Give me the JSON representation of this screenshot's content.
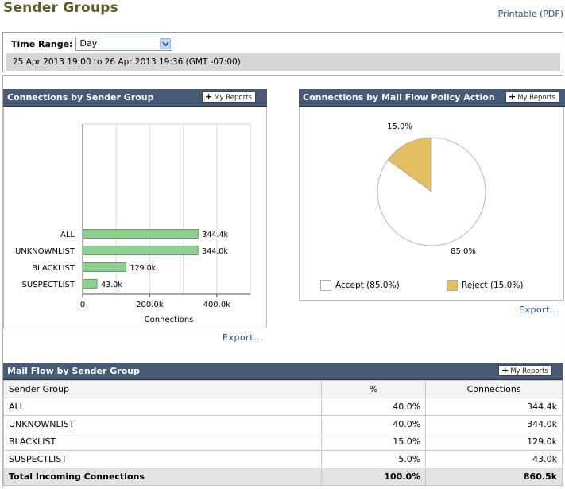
{
  "page": {
    "title": "Sender Groups",
    "printable_link": "Printable (PDF)"
  },
  "time_range": {
    "label": "Time Range:",
    "selected": "Day",
    "range_text": "25 Apr 2013 19:00 to 26 Apr 2013 19:36 (GMT -07:00)"
  },
  "my_reports_label": "My Reports",
  "export_label": "Export...",
  "connections_panel": {
    "title": "Connections by Sender Group"
  },
  "policy_panel": {
    "title": "Connections by Mail Flow Policy Action"
  },
  "chart_data": [
    {
      "type": "bar",
      "orientation": "horizontal",
      "categories": [
        "ALL",
        "UNKNOWNLIST",
        "BLACKLIST",
        "SUSPECTLIST"
      ],
      "values": [
        344.4,
        344.0,
        129.0,
        43.0
      ],
      "value_labels": [
        "344.4k",
        "344.0k",
        "129.0k",
        "43.0k"
      ],
      "xlabel": "Connections",
      "xticks": [
        "0",
        "200.0k",
        "400.0k"
      ],
      "xlim": [
        0,
        500
      ],
      "grid": true,
      "color": "#8fcf8f"
    },
    {
      "type": "pie",
      "labels": [
        "Accept",
        "Reject"
      ],
      "values": [
        85.0,
        15.0
      ],
      "slice_labels": [
        "85.0%",
        "15.0%"
      ],
      "legend": [
        "Accept  (85.0%)",
        "Reject  (15.0%)"
      ],
      "colors": [
        "#ffffff",
        "#e3be61"
      ],
      "legend_position": "bottom"
    }
  ],
  "mail_flow": {
    "title": "Mail Flow by Sender Group",
    "columns": [
      "Sender Group",
      "%",
      "Connections"
    ],
    "rows": [
      {
        "group": "ALL",
        "percent": "40.0%",
        "connections": "344.4k"
      },
      {
        "group": "UNKNOWNLIST",
        "percent": "40.0%",
        "connections": "344.0k"
      },
      {
        "group": "BLACKLIST",
        "percent": "15.0%",
        "connections": "129.0k"
      },
      {
        "group": "SUSPECTLIST",
        "percent": "5.0%",
        "connections": "43.0k"
      }
    ],
    "total": {
      "label": "Total Incoming Connections",
      "percent": "100.0%",
      "connections": "860.5k"
    }
  }
}
